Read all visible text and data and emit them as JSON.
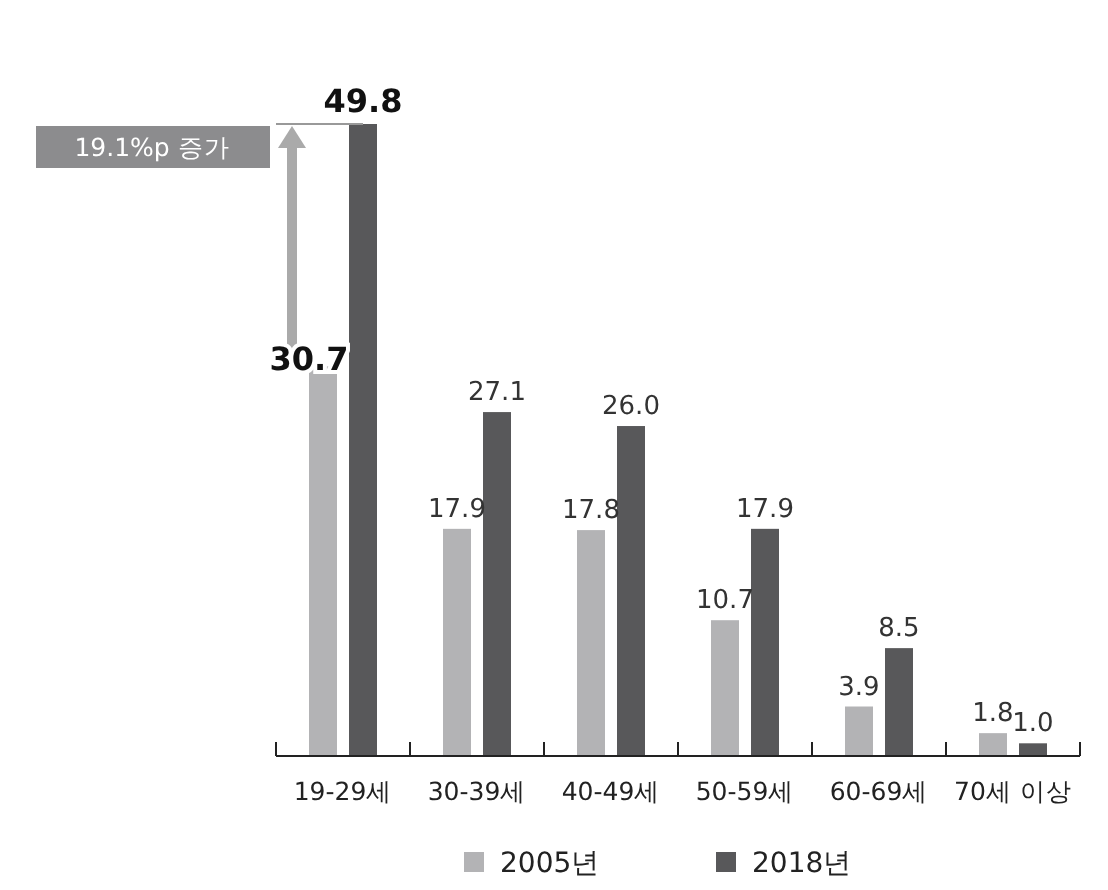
{
  "chart_data": {
    "type": "bar",
    "categories": [
      "19-29세",
      "30-39세",
      "40-49세",
      "50-59세",
      "60-69세",
      "70세 이상"
    ],
    "series": [
      {
        "name": "2005년",
        "color": "#b3b3b5",
        "values": [
          30.7,
          17.9,
          17.8,
          10.7,
          3.9,
          1.8
        ],
        "value_labels": [
          "30.7",
          "17.9",
          "17.8",
          "10.7",
          "3.9",
          "1.8"
        ]
      },
      {
        "name": "2018년",
        "color": "#58585a",
        "values": [
          49.8,
          27.1,
          26.0,
          17.9,
          8.5,
          1.0
        ],
        "value_labels": [
          "49.8",
          "27.1",
          "26.0",
          "17.9",
          "8.5",
          "1.0"
        ]
      }
    ],
    "legend": "bottom",
    "annotations": [
      "19.1%p 증가"
    ]
  }
}
